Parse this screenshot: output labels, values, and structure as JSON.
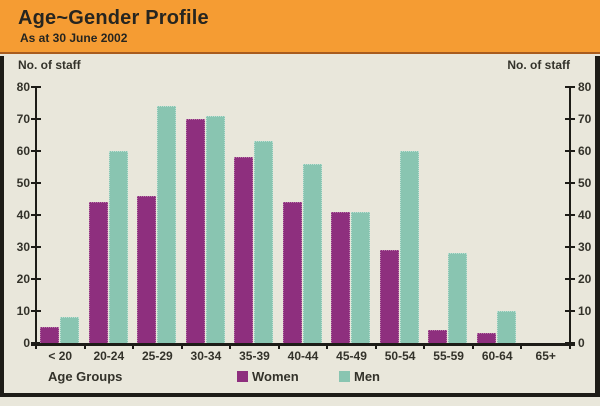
{
  "header": {
    "title": "Age~Gender Profile",
    "subtitle": "As at 30 June 2002"
  },
  "axes": {
    "left_label": "No. of staff",
    "right_label": "No. of staff",
    "x_label": "Age Groups",
    "y_ticks": [
      0,
      10,
      20,
      30,
      40,
      50,
      60,
      70,
      80
    ]
  },
  "legend": {
    "women": "Women",
    "men": "Men"
  },
  "colors": {
    "women": "#8e2f7e",
    "men": "#89c5b1",
    "header_bg": "#f59c33",
    "plot_bg": "#e9e7db",
    "frame": "#1d1c17"
  },
  "chart_data": {
    "type": "bar",
    "title": "Age~Gender Profile",
    "subtitle": "As at 30 June 2002",
    "categories": [
      "< 20",
      "20-24",
      "25-29",
      "30-34",
      "35-39",
      "40-44",
      "45-49",
      "50-54",
      "55-59",
      "60-64",
      "65+"
    ],
    "series": [
      {
        "name": "Women",
        "color": "#8e2f7e",
        "values": [
          5,
          44,
          46,
          70,
          58,
          44,
          41,
          29,
          4,
          3,
          0
        ]
      },
      {
        "name": "Men",
        "color": "#89c5b1",
        "values": [
          8,
          60,
          74,
          71,
          63,
          56,
          41,
          60,
          28,
          10,
          0
        ]
      }
    ],
    "xlabel": "Age Groups",
    "ylabel": "No. of staff",
    "ylim": [
      0,
      80
    ],
    "ytick_step": 10,
    "grid": false,
    "legend_position": "bottom",
    "dual_y_axis": true
  }
}
